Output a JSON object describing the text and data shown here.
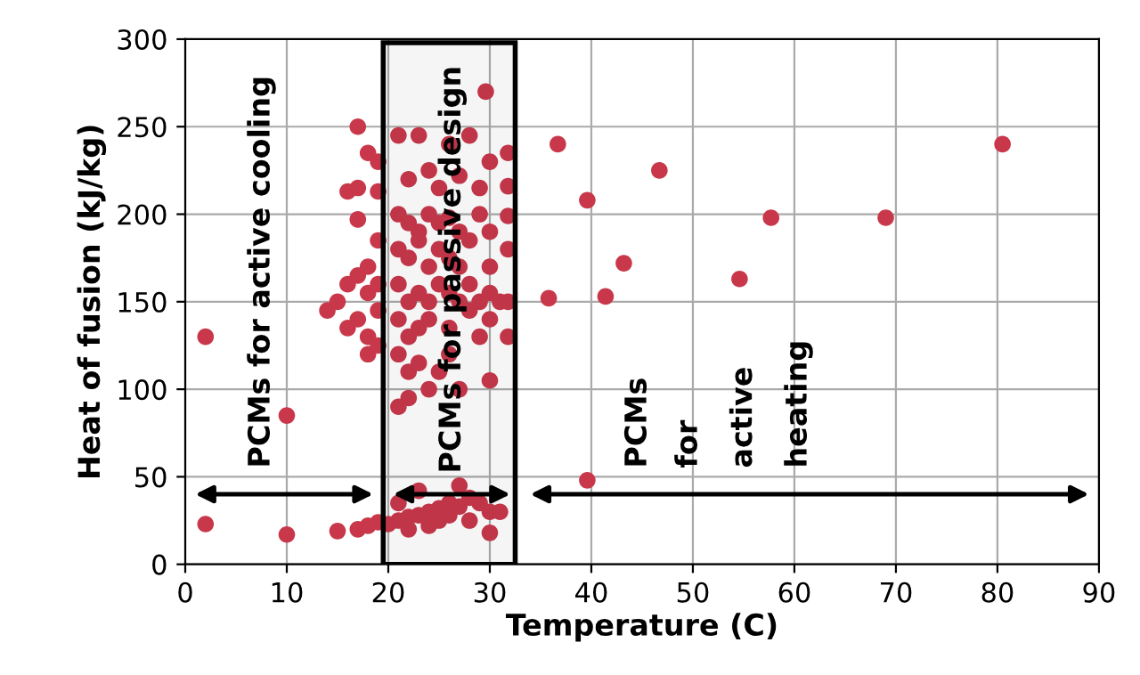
{
  "chart_data": {
    "type": "scatter",
    "xlabel": "Temperature (C)",
    "ylabel": "Heat of fusion (kJ/kg)",
    "xlim": [
      0,
      90
    ],
    "ylim": [
      0,
      300
    ],
    "xticks": [
      0,
      10,
      20,
      30,
      40,
      50,
      60,
      70,
      80,
      90
    ],
    "yticks": [
      0,
      50,
      100,
      150,
      200,
      250,
      300
    ],
    "grid": true,
    "marker": "circle",
    "bands": [
      {
        "axis": "x",
        "from": 19.5,
        "to": 32.5,
        "color": "#000000"
      }
    ],
    "annotations": [
      "PCMs for active cooling",
      "PCMs for passive design",
      "PCMs",
      "for",
      "active",
      "heating"
    ],
    "series": [
      {
        "color": "#c8384a",
        "x": [
          2,
          2,
          10,
          10,
          15,
          17,
          18,
          19,
          17,
          18,
          19,
          16,
          17,
          19,
          17,
          14,
          15,
          16,
          17,
          18,
          17,
          18,
          19,
          16,
          18,
          19,
          19,
          18,
          19,
          21,
          23,
          26,
          28,
          22,
          24,
          27,
          30,
          25,
          29,
          21,
          22,
          23,
          24,
          25,
          26,
          27,
          28,
          29,
          30,
          21,
          22,
          23,
          24,
          25,
          26,
          27,
          28,
          30,
          21,
          22,
          23,
          24,
          25,
          26,
          27,
          28,
          29,
          30,
          31,
          21,
          22,
          23,
          24,
          26,
          29,
          30,
          21,
          22,
          23,
          25,
          26,
          27,
          22,
          24,
          30,
          21,
          20,
          21,
          22,
          23,
          24,
          25,
          26,
          27,
          28,
          29,
          30,
          21,
          23,
          27,
          30,
          25,
          26,
          22,
          24,
          28,
          31,
          29.6,
          31.8,
          31.8,
          31.8,
          31.8,
          31.8,
          31.8,
          36.7,
          46.7,
          39.6,
          57.7,
          69,
          80.5,
          43.2,
          54.6,
          35.8,
          41.4,
          39.6
        ],
        "values": [
          130,
          23,
          85,
          17,
          19,
          20,
          22,
          24,
          250,
          235,
          230,
          213,
          215,
          213,
          197,
          145,
          150,
          160,
          165,
          170,
          140,
          155,
          160,
          135,
          130,
          145,
          185,
          120,
          125,
          245,
          245,
          240,
          245,
          220,
          225,
          222,
          230,
          215,
          215,
          200,
          195,
          190,
          200,
          195,
          198,
          190,
          185,
          200,
          190,
          180,
          175,
          185,
          170,
          180,
          175,
          170,
          160,
          170,
          160,
          150,
          155,
          150,
          160,
          155,
          150,
          145,
          150,
          155,
          150,
          140,
          130,
          135,
          140,
          135,
          130,
          140,
          120,
          110,
          115,
          110,
          120,
          100,
          95,
          100,
          105,
          90,
          23,
          25,
          27,
          28,
          30,
          32,
          35,
          33,
          38,
          35,
          30,
          35,
          42,
          45,
          18,
          25,
          28,
          20,
          22,
          25,
          30,
          270,
          235,
          216,
          199,
          180,
          150,
          130,
          240,
          225,
          208,
          198,
          198,
          240,
          172,
          163,
          152,
          153,
          48
        ]
      }
    ]
  }
}
